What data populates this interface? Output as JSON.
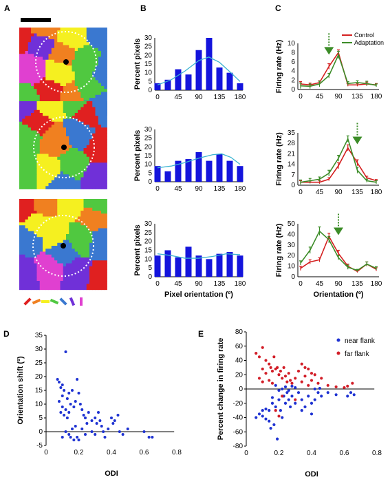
{
  "panel_labels": {
    "a": "A",
    "b": "B",
    "c": "C",
    "d": "D",
    "e": "E"
  },
  "colors": {
    "bar": "#1414dc",
    "fit": "#3cb4d2",
    "control": "#d42020",
    "adaptation": "#3c8c28",
    "arrow": "#3c8c28",
    "near": "#1e32d2",
    "far": "#d21e28",
    "map": [
      "#e02020",
      "#f08020",
      "#f5f020",
      "#50c840",
      "#3a78d0",
      "#7030d8",
      "#e040d0"
    ]
  },
  "icons": {
    "adapt_arrow": "down-arrow-icon",
    "scale_bar": "scale-bar",
    "pinwheel": "orientation-pinwheel-map"
  },
  "chart_data": [
    {
      "id": "B1",
      "type": "bar",
      "ylabel": "Percent pixels",
      "xlabel": "",
      "x": [
        0,
        22.5,
        45,
        67.5,
        90,
        112.5,
        135,
        157.5,
        180
      ],
      "values": [
        4,
        6,
        12,
        9,
        23,
        30,
        13,
        10,
        4
      ],
      "fit": [
        [
          0,
          3
        ],
        [
          30,
          6
        ],
        [
          60,
          11
        ],
        [
          90,
          17
        ],
        [
          112,
          19
        ],
        [
          135,
          16
        ],
        [
          160,
          10
        ],
        [
          180,
          5
        ]
      ],
      "ylim": [
        0,
        30
      ],
      "yticks": [
        "0",
        "5",
        "10",
        "15",
        "20",
        "25",
        "30"
      ],
      "xticks": [
        "0",
        "45",
        "90",
        "135",
        "180"
      ]
    },
    {
      "id": "B2",
      "type": "bar",
      "ylabel": "Percent pixels",
      "xlabel": "",
      "x": [
        0,
        22.5,
        45,
        67.5,
        90,
        112.5,
        135,
        157.5,
        180
      ],
      "values": [
        9,
        6,
        12,
        13,
        17,
        12,
        16,
        12,
        9
      ],
      "fit": [
        [
          0,
          8
        ],
        [
          30,
          9
        ],
        [
          60,
          11
        ],
        [
          90,
          13.5
        ],
        [
          120,
          15.5
        ],
        [
          140,
          16
        ],
        [
          160,
          14
        ],
        [
          180,
          10
        ]
      ],
      "ylim": [
        0,
        30
      ],
      "yticks": [
        "0",
        "5",
        "10",
        "15",
        "20",
        "25",
        "30"
      ],
      "xticks": [
        "0",
        "45",
        "90",
        "135",
        "180"
      ]
    },
    {
      "id": "B3",
      "type": "bar",
      "ylabel": "Percent pixels",
      "xlabel": "Pixel orientation (º)",
      "x": [
        0,
        22.5,
        45,
        67.5,
        90,
        112.5,
        135,
        157.5,
        180
      ],
      "values": [
        12,
        15,
        11,
        17,
        12,
        10,
        13,
        14,
        12
      ],
      "fit": [
        [
          0,
          13
        ],
        [
          30,
          12
        ],
        [
          60,
          10.5
        ],
        [
          90,
          10.5
        ],
        [
          120,
          11.5
        ],
        [
          150,
          13
        ],
        [
          180,
          12.5
        ]
      ],
      "ylim": [
        0,
        30
      ],
      "yticks": [
        "0",
        "5",
        "10",
        "15",
        "20",
        "25",
        "30"
      ],
      "xticks": [
        "0",
        "45",
        "90",
        "135",
        "180"
      ]
    },
    {
      "id": "C1",
      "type": "line",
      "ylabel": "Firing rate (Hz)",
      "xlabel": "",
      "ylim": [
        0,
        10
      ],
      "yticks": [
        "0",
        "2",
        "4",
        "6",
        "8",
        "10"
      ],
      "xticks": [
        "0",
        "45",
        "90",
        "135",
        "180"
      ],
      "legend": [
        "Control",
        "Adaptation"
      ],
      "arrow_x": 67.5,
      "series": [
        {
          "name": "Control",
          "x": [
            0,
            22.5,
            45,
            67.5,
            90,
            112.5,
            135,
            157.5,
            180
          ],
          "y": [
            1.2,
            1,
            1.5,
            5,
            8,
            1,
            1,
            1.2,
            1
          ],
          "err": [
            0.5,
            0.4,
            0.4,
            0.6,
            0.6,
            0.3,
            0.3,
            0.4,
            0.3
          ]
        },
        {
          "name": "Adaptation",
          "x": [
            0,
            22.5,
            45,
            67.5,
            90,
            112.5,
            135,
            157.5,
            180
          ],
          "y": [
            0.8,
            0.7,
            1.2,
            3,
            7.5,
            1.3,
            1.5,
            1.3,
            0.9
          ],
          "err": [
            0.6,
            0.5,
            0.6,
            0.5,
            0.8,
            0.4,
            0.4,
            0.5,
            0.3
          ]
        }
      ]
    },
    {
      "id": "C2",
      "type": "line",
      "ylabel": "Firing rate (Hz)",
      "xlabel": "",
      "ylim": [
        0,
        35
      ],
      "yticks": [
        "0",
        "7",
        "14",
        "21",
        "28",
        "35"
      ],
      "xticks": [
        "0",
        "45",
        "90",
        "135",
        "180"
      ],
      "arrow_x": 135,
      "series": [
        {
          "name": "Control",
          "x": [
            0,
            22.5,
            45,
            67.5,
            90,
            112.5,
            135,
            157.5,
            180
          ],
          "y": [
            2,
            2,
            2,
            4,
            13,
            25,
            15,
            5,
            3
          ],
          "err": [
            1,
            0.8,
            1,
            1,
            2,
            2,
            2,
            1,
            0.8
          ]
        },
        {
          "name": "Adaptation",
          "x": [
            0,
            22.5,
            45,
            67.5,
            90,
            112.5,
            135,
            157.5,
            180
          ],
          "y": [
            2,
            3,
            4,
            8,
            18,
            31,
            10,
            3,
            2
          ],
          "err": [
            1.5,
            1.5,
            1.5,
            2,
            2,
            2,
            2,
            1,
            1
          ]
        }
      ]
    },
    {
      "id": "C3",
      "type": "line",
      "ylabel": "Firing rate (Hz)",
      "xlabel": "Orientation (º)",
      "ylim": [
        0,
        50
      ],
      "yticks": [
        "0",
        "10",
        "20",
        "30",
        "40",
        "50"
      ],
      "xticks": [
        "0",
        "45",
        "90",
        "135",
        "180"
      ],
      "arrow_x": 90,
      "series": [
        {
          "name": "Control",
          "x": [
            0,
            22.5,
            45,
            67.5,
            90,
            112.5,
            135,
            157.5,
            180
          ],
          "y": [
            8,
            14,
            16,
            38,
            22,
            10,
            5,
            12,
            7
          ],
          "err": [
            2,
            2,
            2,
            3,
            3,
            2,
            1,
            2,
            1.5
          ]
        },
        {
          "name": "Adaptation",
          "x": [
            0,
            22.5,
            45,
            67.5,
            90,
            112.5,
            135,
            157.5,
            180
          ],
          "y": [
            13,
            25,
            43,
            35,
            18,
            9,
            6,
            12,
            8
          ],
          "err": [
            2,
            3,
            4,
            3,
            2,
            2,
            1,
            2,
            1.5
          ]
        }
      ]
    },
    {
      "id": "D",
      "type": "scatter",
      "ylabel": "Orientation shift (º)",
      "xlabel": "ODI",
      "xlim": [
        0,
        0.8
      ],
      "ylim": [
        -5,
        35
      ],
      "xticks": [
        "0",
        "0.2",
        "0.4",
        "0.6",
        "0.8"
      ],
      "yticks": [
        "-5",
        "0",
        "5",
        "10",
        "15",
        "20",
        "25",
        "30",
        "35"
      ],
      "points": [
        [
          0.07,
          19
        ],
        [
          0.08,
          18
        ],
        [
          0.09,
          16
        ],
        [
          0.1,
          17
        ],
        [
          0.11,
          15
        ],
        [
          0.12,
          29
        ],
        [
          0.08,
          11
        ],
        [
          0.1,
          13
        ],
        [
          0.13,
          12
        ],
        [
          0.14,
          14
        ],
        [
          0.15,
          10
        ],
        [
          0.16,
          15
        ],
        [
          0.09,
          7
        ],
        [
          0.1,
          9
        ],
        [
          0.12,
          8
        ],
        [
          0.11,
          6
        ],
        [
          0.13,
          5
        ],
        [
          0.14,
          7
        ],
        [
          0.17,
          9
        ],
        [
          0.18,
          11
        ],
        [
          0.19,
          19
        ],
        [
          0.2,
          14
        ],
        [
          0.21,
          10
        ],
        [
          0.22,
          8
        ],
        [
          0.23,
          6
        ],
        [
          0.24,
          5
        ],
        [
          0.25,
          3
        ],
        [
          0.26,
          7
        ],
        [
          0.18,
          2
        ],
        [
          0.16,
          1
        ],
        [
          0.15,
          -2
        ],
        [
          0.17,
          -3
        ],
        [
          0.19,
          -2
        ],
        [
          0.2,
          -3
        ],
        [
          0.14,
          -1
        ],
        [
          0.12,
          0
        ],
        [
          0.1,
          -2
        ],
        [
          0.22,
          1
        ],
        [
          0.24,
          -1
        ],
        [
          0.28,
          4
        ],
        [
          0.3,
          5
        ],
        [
          0.31,
          3
        ],
        [
          0.32,
          7
        ],
        [
          0.33,
          4
        ],
        [
          0.34,
          2
        ],
        [
          0.35,
          0
        ],
        [
          0.36,
          -2
        ],
        [
          0.38,
          1
        ],
        [
          0.4,
          5
        ],
        [
          0.41,
          3
        ],
        [
          0.42,
          4
        ],
        [
          0.44,
          6
        ],
        [
          0.45,
          0
        ],
        [
          0.47,
          -1
        ],
        [
          0.5,
          1
        ],
        [
          0.6,
          0
        ],
        [
          0.63,
          -2
        ],
        [
          0.65,
          -2
        ],
        [
          0.28,
          0
        ],
        [
          0.3,
          -1
        ]
      ]
    },
    {
      "id": "E",
      "type": "scatter",
      "ylabel": "Percent change in firing rate",
      "xlabel": "ODI",
      "xlim": [
        0,
        0.8
      ],
      "ylim": [
        -80,
        80
      ],
      "xticks": [
        "0",
        "0.2",
        "0.4",
        "0.6",
        "0.8"
      ],
      "yticks": [
        "-80",
        "-60",
        "-40",
        "-20",
        "0",
        "20",
        "40",
        "60",
        "80"
      ],
      "series": [
        {
          "name": "near flank",
          "points": [
            [
              0.06,
              -40
            ],
            [
              0.08,
              -35
            ],
            [
              0.1,
              -30
            ],
            [
              0.12,
              -28
            ],
            [
              0.14,
              -45
            ],
            [
              0.15,
              -55
            ],
            [
              0.16,
              -20
            ],
            [
              0.17,
              -50
            ],
            [
              0.18,
              -25
            ],
            [
              0.19,
              -70
            ],
            [
              0.2,
              -15
            ],
            [
              0.21,
              -30
            ],
            [
              0.22,
              -40
            ],
            [
              0.23,
              -10
            ],
            [
              0.24,
              -20
            ],
            [
              0.25,
              -5
            ],
            [
              0.26,
              -15
            ],
            [
              0.27,
              -25
            ],
            [
              0.28,
              -10
            ],
            [
              0.3,
              -20
            ],
            [
              0.32,
              -5
            ],
            [
              0.34,
              -15
            ],
            [
              0.36,
              -25
            ],
            [
              0.38,
              -10
            ],
            [
              0.4,
              -20
            ],
            [
              0.42,
              -15
            ],
            [
              0.44,
              -5
            ],
            [
              0.46,
              -10
            ],
            [
              0.5,
              -5
            ],
            [
              0.55,
              -8
            ],
            [
              0.62,
              -10
            ],
            [
              0.64,
              -5
            ],
            [
              0.66,
              -8
            ],
            [
              0.1,
              -38
            ],
            [
              0.12,
              -42
            ],
            [
              0.14,
              -30
            ],
            [
              0.16,
              -12
            ],
            [
              0.18,
              5
            ],
            [
              0.2,
              -2
            ],
            [
              0.22,
              0
            ],
            [
              0.24,
              3
            ],
            [
              0.26,
              -2
            ],
            [
              0.28,
              4
            ],
            [
              0.3,
              2
            ],
            [
              0.34,
              -30
            ],
            [
              0.4,
              -35
            ],
            [
              0.42,
              0
            ],
            [
              0.45,
              1
            ]
          ]
        },
        {
          "name": "far flank",
          "points": [
            [
              0.06,
              50
            ],
            [
              0.08,
              45
            ],
            [
              0.1,
              58
            ],
            [
              0.12,
              40
            ],
            [
              0.14,
              35
            ],
            [
              0.15,
              30
            ],
            [
              0.16,
              25
            ],
            [
              0.17,
              45
            ],
            [
              0.18,
              28
            ],
            [
              0.19,
              30
            ],
            [
              0.2,
              20
            ],
            [
              0.21,
              25
            ],
            [
              0.22,
              15
            ],
            [
              0.23,
              30
            ],
            [
              0.24,
              18
            ],
            [
              0.25,
              10
            ],
            [
              0.26,
              22
            ],
            [
              0.27,
              12
            ],
            [
              0.28,
              8
            ],
            [
              0.3,
              15
            ],
            [
              0.32,
              25
            ],
            [
              0.34,
              10
            ],
            [
              0.36,
              18
            ],
            [
              0.38,
              5
            ],
            [
              0.4,
              12
            ],
            [
              0.42,
              20
            ],
            [
              0.44,
              8
            ],
            [
              0.46,
              15
            ],
            [
              0.5,
              5
            ],
            [
              0.55,
              3
            ],
            [
              0.6,
              2
            ],
            [
              0.62,
              4
            ],
            [
              0.65,
              8
            ],
            [
              0.1,
              28
            ],
            [
              0.12,
              22
            ],
            [
              0.14,
              12
            ],
            [
              0.16,
              8
            ],
            [
              0.18,
              -30
            ],
            [
              0.2,
              -38
            ],
            [
              0.22,
              -10
            ],
            [
              0.3,
              -15
            ],
            [
              0.34,
              35
            ],
            [
              0.36,
              30
            ],
            [
              0.38,
              28
            ],
            [
              0.4,
              22
            ],
            [
              0.08,
              15
            ],
            [
              0.1,
              10
            ]
          ]
        }
      ]
    }
  ]
}
